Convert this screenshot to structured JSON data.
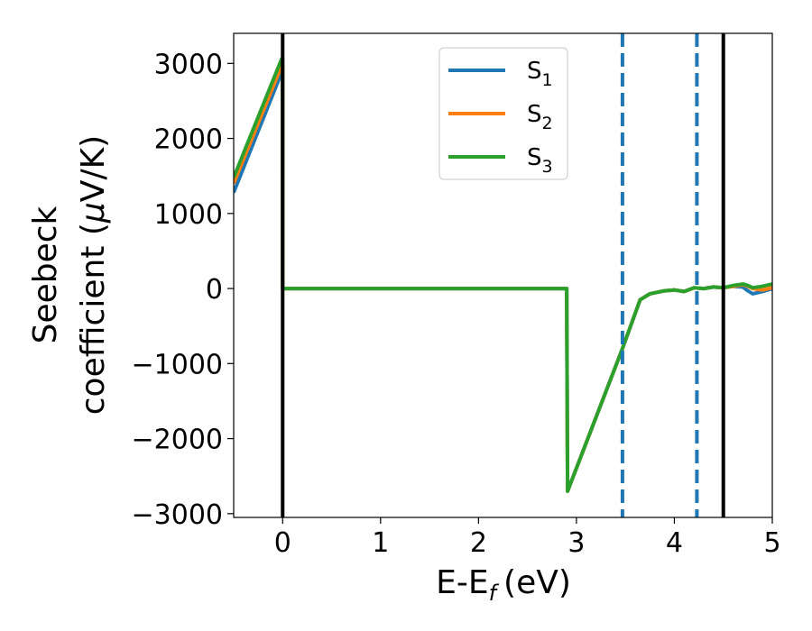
{
  "chart_data": {
    "type": "line",
    "xlabel": "E-E",
    "xlabel_sub": "f",
    "xlabel_unit": "(eV)",
    "ylabel_line1": "Seebeck",
    "ylabel_line2": "coefficient  (",
    "ylabel_mu": "μ",
    "ylabel_unit": "V/K)",
    "xlim": [
      -0.5,
      5.0
    ],
    "ylim": [
      -3050,
      3400
    ],
    "x_ticks": [
      0,
      1,
      2,
      3,
      4,
      5
    ],
    "x_tick_labels": [
      "0",
      "1",
      "2",
      "3",
      "4",
      "5"
    ],
    "y_ticks": [
      -3000,
      -2000,
      -1000,
      0,
      1000,
      2000,
      3000
    ],
    "y_tick_labels": [
      "−3000",
      "−2000",
      "−1000",
      "0",
      "1000",
      "2000",
      "3000"
    ],
    "grid": false,
    "legend_position": "top-center",
    "vertical_lines": [
      {
        "x": 0.0,
        "style": "solid",
        "color": "#000000"
      },
      {
        "x": 3.47,
        "style": "dashed",
        "color": "#1f77b4"
      },
      {
        "x": 4.23,
        "style": "dashed",
        "color": "#1f77b4"
      },
      {
        "x": 4.5,
        "style": "solid",
        "color": "#000000"
      }
    ],
    "series": [
      {
        "name": "S",
        "sub": "1",
        "color": "#1f77b4",
        "points": [
          [
            -0.5,
            1280
          ],
          [
            -0.01,
            2880
          ],
          [
            0.0,
            2880
          ],
          [
            0.0,
            0
          ],
          [
            2.9,
            0
          ],
          [
            2.91,
            -2700
          ],
          [
            3.47,
            -800
          ],
          [
            3.65,
            -150
          ],
          [
            3.75,
            -70
          ],
          [
            3.9,
            -30
          ],
          [
            4.0,
            -20
          ],
          [
            4.1,
            -40
          ],
          [
            4.2,
            10
          ],
          [
            4.3,
            0
          ],
          [
            4.4,
            20
          ],
          [
            4.5,
            10
          ],
          [
            4.6,
            30
          ],
          [
            4.7,
            20
          ],
          [
            4.75,
            -30
          ],
          [
            4.8,
            -70
          ],
          [
            4.9,
            -40
          ],
          [
            5.0,
            0
          ]
        ]
      },
      {
        "name": "S",
        "sub": "2",
        "color": "#ff7f0e",
        "points": [
          [
            -0.5,
            1400
          ],
          [
            -0.01,
            2970
          ],
          [
            0.0,
            2970
          ],
          [
            0.0,
            0
          ],
          [
            2.9,
            0
          ],
          [
            2.91,
            -2700
          ],
          [
            3.47,
            -800
          ],
          [
            3.65,
            -150
          ],
          [
            3.75,
            -70
          ],
          [
            3.9,
            -30
          ],
          [
            4.0,
            -20
          ],
          [
            4.1,
            -40
          ],
          [
            4.2,
            10
          ],
          [
            4.3,
            0
          ],
          [
            4.4,
            20
          ],
          [
            4.5,
            10
          ],
          [
            4.6,
            30
          ],
          [
            4.7,
            50
          ],
          [
            4.75,
            30
          ],
          [
            4.8,
            0
          ],
          [
            4.9,
            -20
          ],
          [
            5.0,
            10
          ]
        ]
      },
      {
        "name": "S",
        "sub": "3",
        "color": "#2ca02c",
        "points": [
          [
            -0.5,
            1480
          ],
          [
            -0.01,
            3060
          ],
          [
            0.0,
            3060
          ],
          [
            0.0,
            0
          ],
          [
            2.9,
            0
          ],
          [
            2.91,
            -2700
          ],
          [
            3.47,
            -800
          ],
          [
            3.65,
            -150
          ],
          [
            3.75,
            -70
          ],
          [
            3.9,
            -30
          ],
          [
            4.0,
            -20
          ],
          [
            4.1,
            -40
          ],
          [
            4.2,
            10
          ],
          [
            4.3,
            0
          ],
          [
            4.4,
            20
          ],
          [
            4.5,
            10
          ],
          [
            4.6,
            40
          ],
          [
            4.7,
            60
          ],
          [
            4.75,
            40
          ],
          [
            4.8,
            10
          ],
          [
            4.9,
            30
          ],
          [
            5.0,
            60
          ]
        ]
      }
    ]
  }
}
